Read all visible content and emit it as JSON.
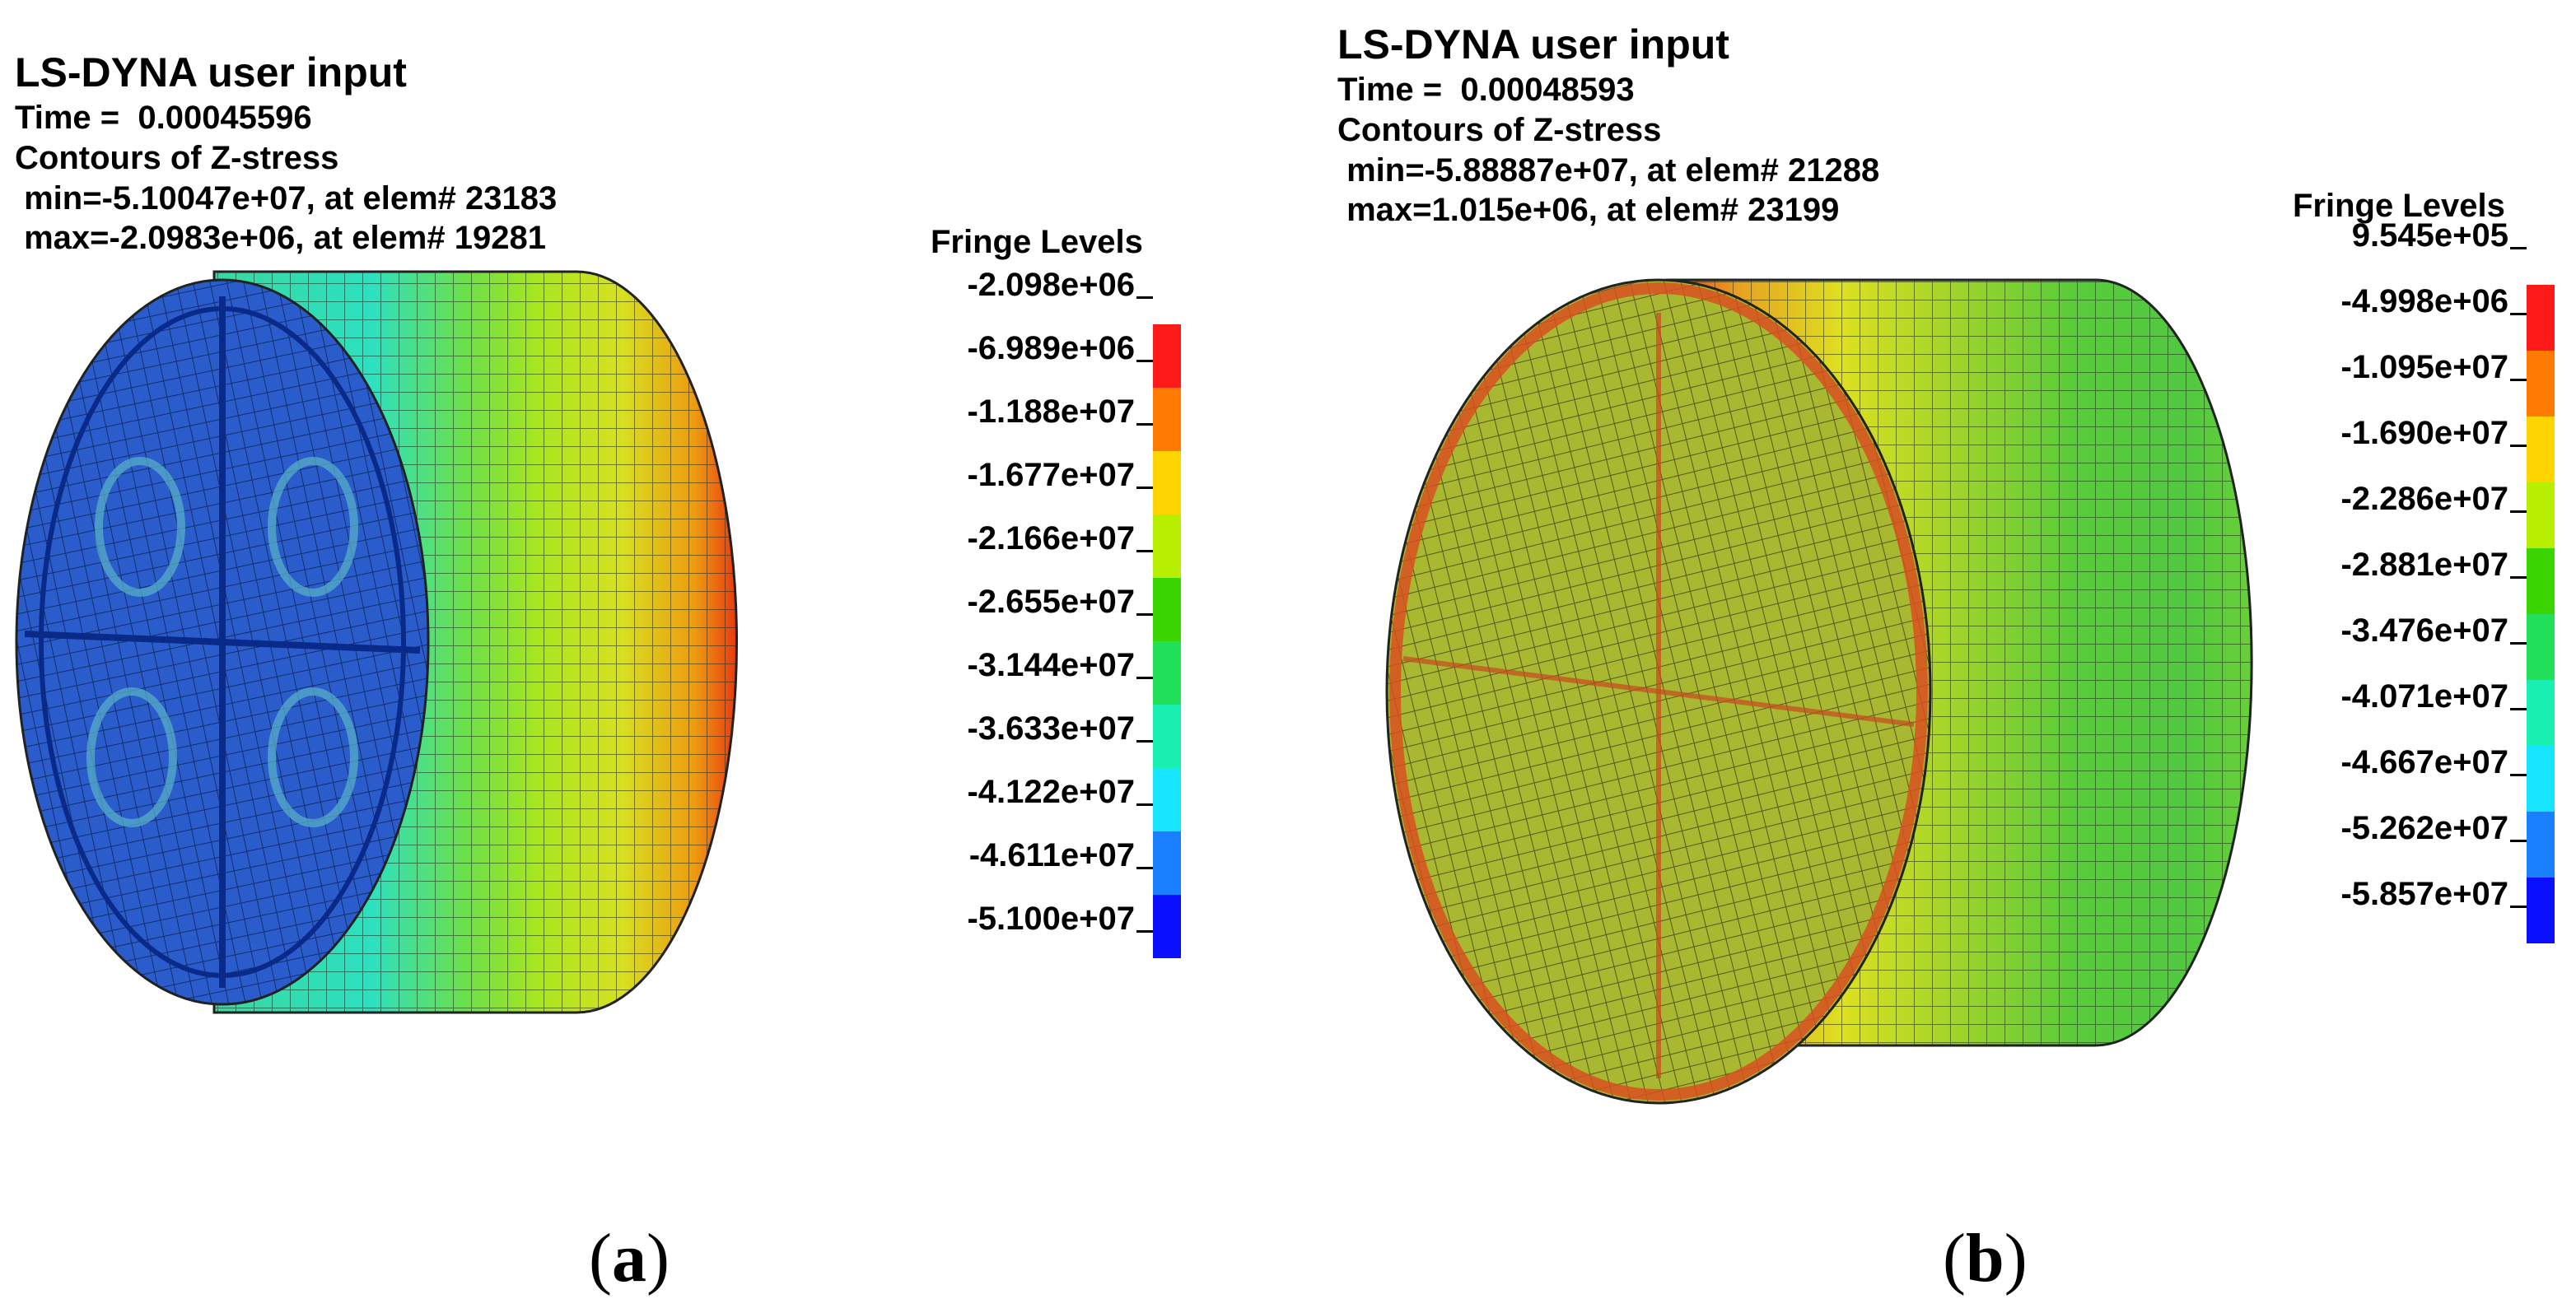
{
  "panels": [
    {
      "id": "a",
      "header": {
        "title": "LS-DYNA user input",
        "time": "Time =  0.00045596",
        "contours": "Contours of Z-stress",
        "min": " min=-5.10047e+07, at elem# 23183",
        "max": " max=-2.0983e+06, at elem# 19281"
      },
      "legend_title": "Fringe Levels",
      "levels": [
        "-2.098e+06",
        "-6.989e+06",
        "-1.188e+07",
        "-1.677e+07",
        "-2.166e+07",
        "-2.655e+07",
        "-3.144e+07",
        "-3.633e+07",
        "-4.122e+07",
        "-4.611e+07",
        "-5.100e+07"
      ],
      "colors": [
        "#ff1a1a",
        "#ff7a00",
        "#ffd400",
        "#b8ef00",
        "#3ad400",
        "#22e05a",
        "#19efb0",
        "#17e5ff",
        "#1a80ff",
        "#0a10ff"
      ],
      "caption": "a"
    },
    {
      "id": "b",
      "header": {
        "title": "LS-DYNA user input",
        "time": "Time =  0.00048593",
        "contours": "Contours of Z-stress",
        "min": " min=-5.88887e+07, at elem# 21288",
        "max": " max=1.015e+06, at elem# 23199"
      },
      "legend_title": "Fringe Levels",
      "levels": [
        "9.545e+05",
        "-4.998e+06",
        "-1.095e+07",
        "-1.690e+07",
        "-2.286e+07",
        "-2.881e+07",
        "-3.476e+07",
        "-4.071e+07",
        "-4.667e+07",
        "-5.262e+07",
        "-5.857e+07"
      ],
      "colors": [
        "#ff1a1a",
        "#ff7a00",
        "#ffd400",
        "#b8ef00",
        "#3ad400",
        "#22e05a",
        "#19efb0",
        "#17e5ff",
        "#1a80ff",
        "#0a10ff"
      ],
      "caption": "b"
    }
  ]
}
